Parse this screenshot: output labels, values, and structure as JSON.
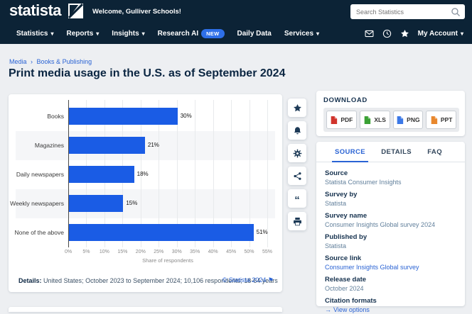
{
  "header": {
    "logo_text": "statista",
    "welcome": "Welcome, Gulliver Schools!",
    "search": {
      "placeholder": "Search Statistics"
    },
    "nav_items": [
      {
        "label": "Statistics",
        "caret": true
      },
      {
        "label": "Reports",
        "caret": true
      },
      {
        "label": "Insights",
        "caret": true
      },
      {
        "label": "Research AI",
        "badge": "NEW"
      },
      {
        "label": "Daily Data"
      },
      {
        "label": "Services",
        "caret": true
      }
    ],
    "icon_names": [
      "mail",
      "clock",
      "star"
    ],
    "account_label": "My Account",
    "colors": {
      "header_bg": "#0c2336",
      "badge_blue": "#2e6fe8"
    }
  },
  "breadcrumb": {
    "items": [
      "Media",
      "Books & Publishing"
    ],
    "separator": "›"
  },
  "page_title": "Print media usage in the U.S. as of September 2024",
  "chart_data": {
    "type": "bar",
    "orientation": "horizontal",
    "categories": [
      "Books",
      "Magazines",
      "Daily newspapers",
      "Weekly newspapers",
      "None of the above"
    ],
    "values": [
      30,
      21,
      18,
      15,
      51
    ],
    "value_labels": [
      "30%",
      "21%",
      "18%",
      "15%",
      "51%"
    ],
    "x_ticks": [
      "0%",
      "5%",
      "10%",
      "15%",
      "20%",
      "25%",
      "30%",
      "35%",
      "40%",
      "45%",
      "50%",
      "55%"
    ],
    "xlim": [
      0,
      55
    ],
    "xlabel": "Share of respondents",
    "bar_color": "#1a5ce5",
    "grid": true,
    "stripe_color": "#f5f6f8"
  },
  "chart_footer": {
    "details_label": "Details:",
    "details_text": "United States; October 2023 to September 2024; 10,106 respondents; 18-64 years",
    "copyright": "© Statista 2024",
    "flag_glyph": "⚑"
  },
  "side_toolbar": {
    "icons": [
      "star",
      "bell",
      "gear",
      "share",
      "quote",
      "printer"
    ]
  },
  "download": {
    "title": "DOWNLOAD",
    "buttons": [
      {
        "label": "PDF",
        "icon_color": "#d0342c"
      },
      {
        "label": "XLS",
        "icon_color": "#3ba135"
      },
      {
        "label": "PNG",
        "icon_color": "#3b78e7"
      },
      {
        "label": "PPT",
        "icon_color": "#e8872d"
      }
    ]
  },
  "info_panel": {
    "tabs": [
      {
        "label": "SOURCE",
        "active": true
      },
      {
        "label": "DETAILS",
        "active": false
      },
      {
        "label": "FAQ",
        "active": false
      }
    ],
    "fields": [
      {
        "label": "Source",
        "value": "Statista Consumer Insights",
        "style": "muted"
      },
      {
        "label": "Survey by",
        "value": "Statista",
        "style": "muted"
      },
      {
        "label": "Survey name",
        "value": "Consumer Insights Global survey 2024",
        "style": "muted"
      },
      {
        "label": "Published by",
        "value": "Statista",
        "style": "muted"
      },
      {
        "label": "Source link",
        "value": "Consumer Insights Global survey",
        "style": "link"
      },
      {
        "label": "Release date",
        "value": "October 2024",
        "style": "link_arrow_label_only"
      },
      {
        "label": "Citation formats",
        "value": "View options",
        "style": "link_arrow",
        "arrow": "→"
      }
    ]
  }
}
